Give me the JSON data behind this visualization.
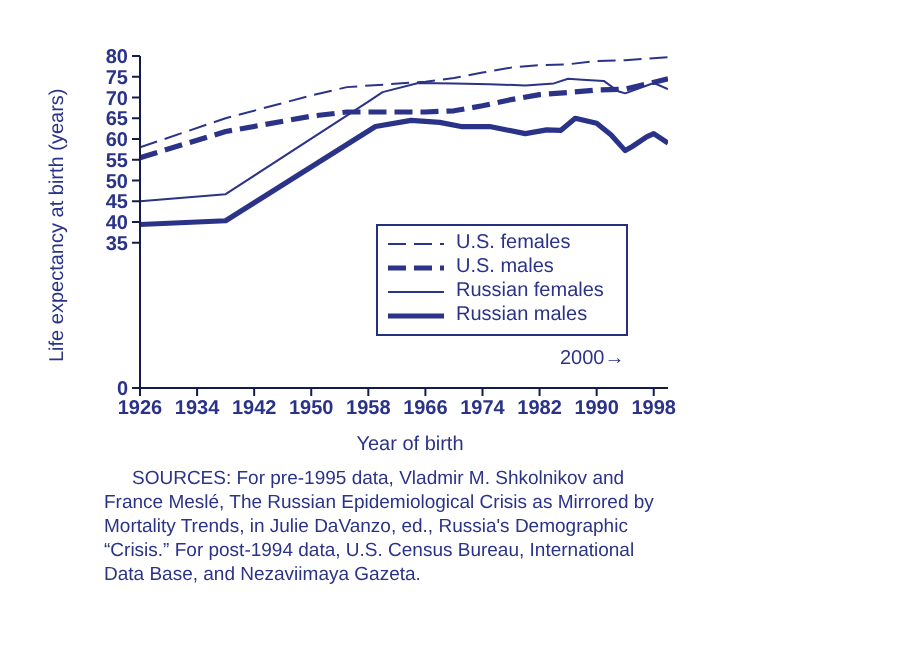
{
  "chart_data": {
    "type": "line",
    "xlabel": "Year of birth",
    "ylabel": "Life expectancy at birth (years)",
    "xlim": [
      1926,
      2000
    ],
    "xticks": [
      1926,
      1934,
      1942,
      1950,
      1958,
      1966,
      1974,
      1982,
      1990,
      1998
    ],
    "ylim": [
      0,
      80
    ],
    "yticks": [
      0,
      35,
      40,
      45,
      50,
      55,
      60,
      65,
      70,
      75,
      80
    ],
    "grid": false,
    "legend": "bottom right",
    "marker": "none",
    "series": [
      {
        "name": "U.S. females",
        "color": "#2b3388",
        "line_style": "dashed",
        "x": [
          1926,
          1938,
          1950,
          1955,
          1966,
          1970,
          1974,
          1978,
          1982,
          1986,
          1990,
          1994,
          2000
        ],
        "values": [
          58,
          65,
          70.5,
          72.5,
          73.8,
          74.7,
          76,
          77.2,
          77.8,
          78,
          78.8,
          79,
          79.7
        ]
      },
      {
        "name": "U.S. males",
        "color": "#2b3388",
        "line_style": "dashed",
        "x": [
          1926,
          1938,
          1950,
          1955,
          1966,
          1970,
          1974,
          1978,
          1982,
          1986,
          1990,
          1994,
          2000
        ],
        "values": [
          55.5,
          61.8,
          65.5,
          66.5,
          66.5,
          66.8,
          68,
          69.5,
          70.7,
          71.2,
          71.8,
          72,
          74.5
        ]
      },
      {
        "name": "Russian females",
        "color": "#2b3388",
        "line_style": "solid",
        "x": [
          1926,
          1938,
          1958,
          1960,
          1965,
          1970,
          1975,
          1980,
          1984,
          1986,
          1988,
          1991,
          1993,
          1994,
          1998,
          2000
        ],
        "values": [
          45,
          46.7,
          69,
          71.3,
          73.5,
          73.4,
          73.2,
          72.9,
          73.4,
          74.5,
          74.3,
          74,
          71.5,
          71,
          73.5,
          72
        ]
      },
      {
        "name": "Russian males",
        "color": "#2b3388",
        "line_style": "solid",
        "x": [
          1926,
          1938,
          1959,
          1964,
          1968,
          1971,
          1975,
          1980,
          1983,
          1985,
          1987,
          1990,
          1992,
          1994,
          1995,
          1997,
          1998,
          2000
        ],
        "values": [
          39.4,
          40.3,
          63,
          64.5,
          64,
          63,
          63,
          61.3,
          62.2,
          62.1,
          65,
          63.8,
          61,
          57.2,
          58.2,
          60.5,
          61.3,
          59
        ]
      }
    ],
    "annotations": [
      "2000→",
      "SOURCES: For pre-1995 data, Vladmir M. Shkolnikov and France Meslé, The Russian Epidemiological Crisis as Mirrored by Mortality Trends, in Julie DaVanzo, ed., Russia's Demographic “Crisis.” For post-1994 data, U.S. Census Bureau, International Data Base, and Nezaviimaya Gazeta."
    ]
  }
}
